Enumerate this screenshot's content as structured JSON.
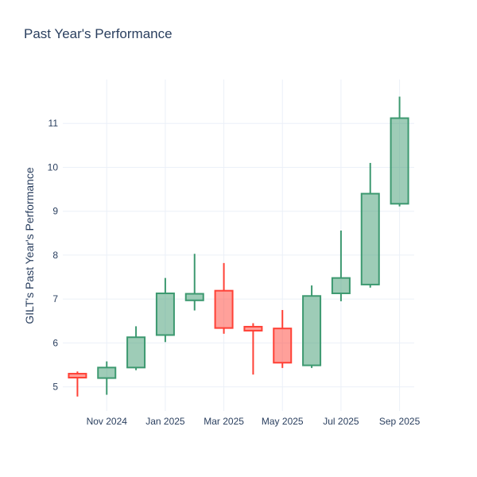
{
  "title": "Past Year's Performance",
  "colors": {
    "text": "#2a3f5f",
    "grid": "#ebf0f8",
    "background": "#ffffff",
    "increasing_line": "#3D9970",
    "increasing_fill": "rgba(61,153,112,0.5)",
    "decreasing_line": "#FF4136",
    "decreasing_fill": "rgba(255,65,54,0.5)"
  },
  "chart_data": {
    "type": "candlestick",
    "title": "Past Year's Performance",
    "xlabel": "",
    "ylabel": "GILT's Past Year's Performance",
    "ylim": [
      4.45,
      12.0
    ],
    "y_ticks": [
      5,
      6,
      7,
      8,
      9,
      10,
      11
    ],
    "x_tick_labels": [
      "Nov 2024",
      "Jan 2025",
      "Mar 2025",
      "May 2025",
      "Jul 2025",
      "Sep 2025"
    ],
    "x_tick_indices": [
      1,
      3,
      5,
      7,
      9,
      11
    ],
    "grid": true,
    "legend": "none",
    "series": [
      {
        "month": "Oct 2024",
        "open": 5.3,
        "high": 5.35,
        "low": 4.78,
        "close": 5.21
      },
      {
        "month": "Nov 2024",
        "open": 5.2,
        "high": 5.58,
        "low": 4.82,
        "close": 5.44
      },
      {
        "month": "Dec 2024",
        "open": 5.44,
        "high": 6.38,
        "low": 5.38,
        "close": 6.13
      },
      {
        "month": "Jan 2025",
        "open": 6.18,
        "high": 7.48,
        "low": 6.02,
        "close": 7.13
      },
      {
        "month": "Feb 2025",
        "open": 6.97,
        "high": 8.03,
        "low": 6.74,
        "close": 7.12
      },
      {
        "month": "Mar 2025",
        "open": 7.19,
        "high": 7.82,
        "low": 6.21,
        "close": 6.34
      },
      {
        "month": "Apr 2025",
        "open": 6.37,
        "high": 6.45,
        "low": 5.28,
        "close": 6.28
      },
      {
        "month": "May 2025",
        "open": 6.33,
        "high": 6.75,
        "low": 5.43,
        "close": 5.55
      },
      {
        "month": "Jun 2025",
        "open": 5.49,
        "high": 7.31,
        "low": 5.43,
        "close": 7.07
      },
      {
        "month": "Jul 2025",
        "open": 7.13,
        "high": 8.56,
        "low": 6.95,
        "close": 7.48
      },
      {
        "month": "Aug 2025",
        "open": 7.33,
        "high": 10.1,
        "low": 7.26,
        "close": 9.4
      },
      {
        "month": "Sep 2025",
        "open": 9.17,
        "high": 11.61,
        "low": 9.11,
        "close": 11.12
      }
    ]
  }
}
